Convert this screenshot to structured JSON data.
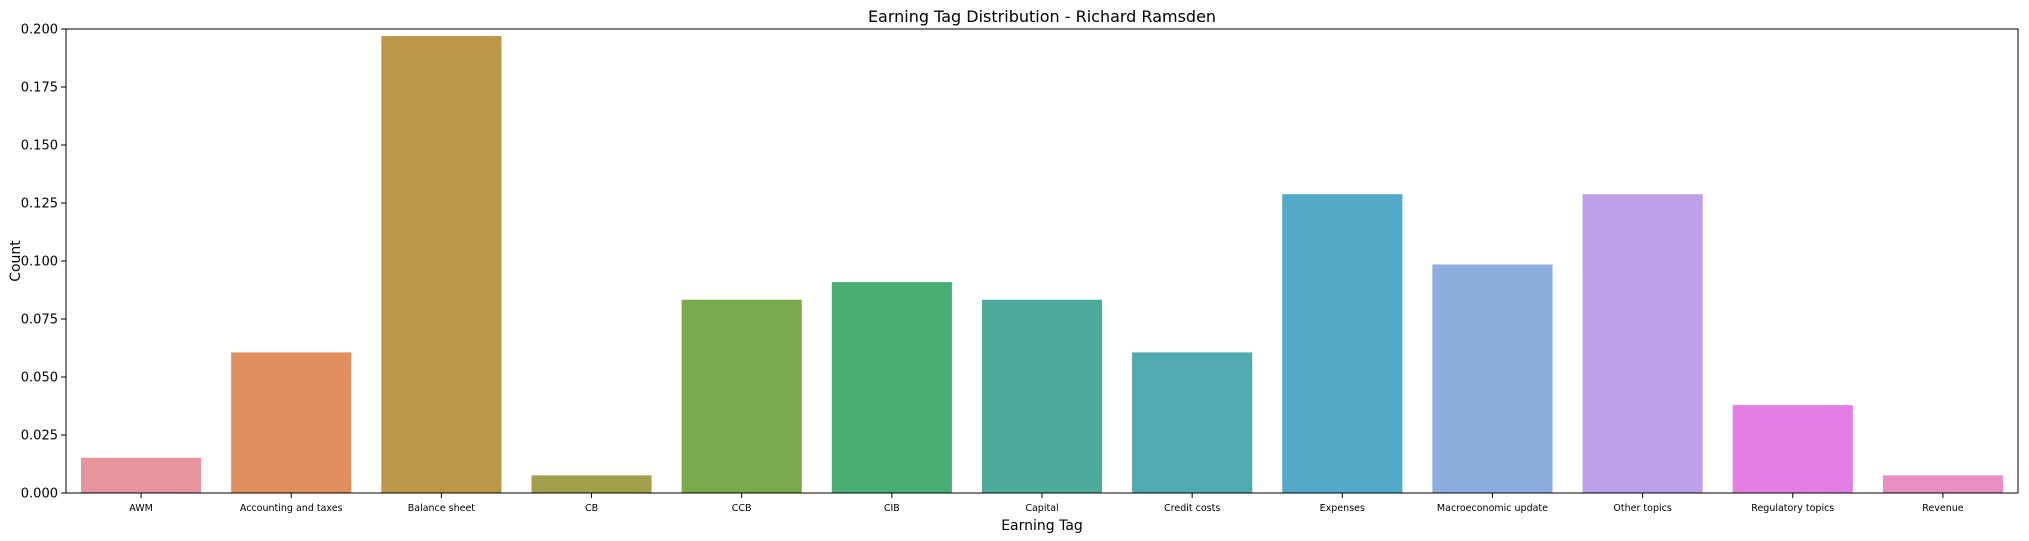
{
  "chart_data": {
    "type": "bar",
    "title": "Earning Tag Distribution - Richard Ramsden",
    "xlabel": "Earning Tag",
    "ylabel": "Count",
    "categories": [
      "AWM",
      "Accounting and taxes",
      "Balance sheet",
      "CB",
      "CCB",
      "CIB",
      "Capital",
      "Credit costs",
      "Expenses",
      "Macroeconomic update",
      "Other topics",
      "Regulatory topics",
      "Revenue"
    ],
    "values": [
      0.0152,
      0.0606,
      0.197,
      0.0076,
      0.0833,
      0.0909,
      0.0833,
      0.0606,
      0.1288,
      0.0985,
      0.1288,
      0.0379,
      0.0076
    ],
    "colors": [
      "#e8949e",
      "#e0905f",
      "#bc9747",
      "#a2a04a",
      "#7ba84a",
      "#48ae72",
      "#4cab9a",
      "#4fabb0",
      "#52a9c8",
      "#8dadde",
      "#bca1e8",
      "#e57fe4",
      "#e98fc6"
    ],
    "ylim": [
      0,
      0.2
    ],
    "yticks": [
      "0.000",
      "0.025",
      "0.050",
      "0.075",
      "0.100",
      "0.125",
      "0.150",
      "0.175",
      "0.200"
    ],
    "grid": false,
    "legend": "none"
  }
}
